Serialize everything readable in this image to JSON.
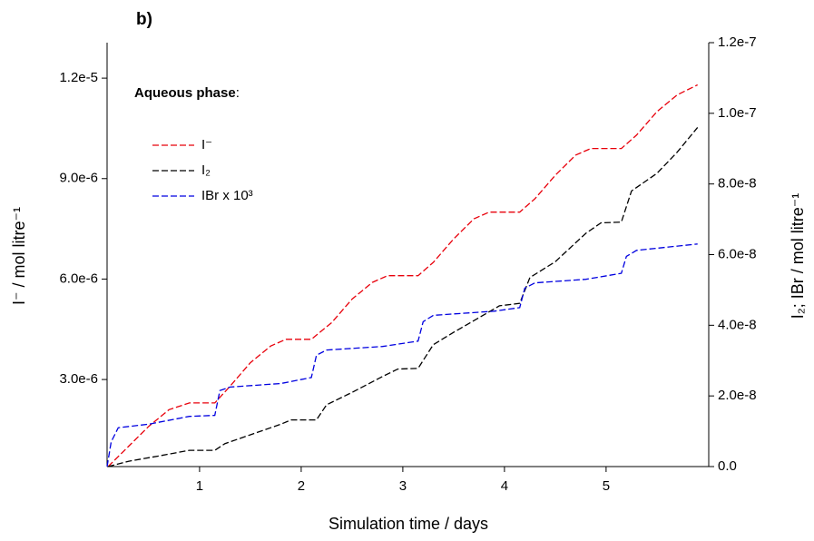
{
  "chart_data": {
    "type": "line",
    "title": "b)",
    "annotation": {
      "bold": "Aqueous phase",
      "rest": ":"
    },
    "xlabel": "Simulation time / days",
    "ylabel": "I⁻ / mol litre⁻¹",
    "y2label": "I₂; IBr / mol litre⁻¹",
    "xlim": [
      0.09,
      6.01
    ],
    "xticks": [
      1,
      2,
      3,
      4,
      5
    ],
    "ylim": [
      4e-07,
      1.306e-05
    ],
    "yticks": [
      {
        "value": 3e-06,
        "label": "3.0e-6"
      },
      {
        "value": 6e-06,
        "label": "6.0e-6"
      },
      {
        "value": 9e-06,
        "label": "9.0e-6"
      },
      {
        "value": 1.2e-05,
        "label": "1.2e-5"
      }
    ],
    "y2lim": [
      0,
      1.2e-07
    ],
    "y2ticks": [
      {
        "value": 0,
        "label": "0.0"
      },
      {
        "value": 2e-08,
        "label": "2.0e-8"
      },
      {
        "value": 4e-08,
        "label": "4.0e-8"
      },
      {
        "value": 6e-08,
        "label": "6.0e-8"
      },
      {
        "value": 8e-08,
        "label": "8.0e-8"
      },
      {
        "value": 1e-07,
        "label": "1.0e-7"
      },
      {
        "value": 1.2e-07,
        "label": "1.2e-7"
      }
    ],
    "series": [
      {
        "name": "I⁻",
        "color": "#e8000b",
        "x": [
          0.1,
          0.3,
          0.5,
          0.7,
          0.9,
          1.15,
          1.3,
          1.5,
          1.7,
          1.85,
          2.1,
          2.3,
          2.5,
          2.7,
          2.85,
          3.15,
          3.3,
          3.5,
          3.7,
          3.85,
          4.15,
          4.3,
          4.5,
          4.7,
          4.85,
          5.15,
          5.3,
          5.5,
          5.7,
          5.9
        ],
        "values": [
          4e-07,
          1e-06,
          1.6e-06,
          2.1e-06,
          2.3e-06,
          2.3e-06,
          2.8e-06,
          3.5e-06,
          4e-06,
          4.2e-06,
          4.2e-06,
          4.7e-06,
          5.4e-06,
          5.9e-06,
          6.1e-06,
          6.1e-06,
          6.5e-06,
          7.2e-06,
          7.8e-06,
          8e-06,
          8e-06,
          8.4e-06,
          9.1e-06,
          9.7e-06,
          9.9e-06,
          9.9e-06,
          1.03e-05,
          1.1e-05,
          1.15e-05,
          1.18e-05
        ]
      },
      {
        "name": "I₂",
        "color": "#000000",
        "axis": "y2",
        "x": [
          0.1,
          0.3,
          0.6,
          0.9,
          1.15,
          1.25,
          1.5,
          1.8,
          1.9,
          2.15,
          2.25,
          2.5,
          2.8,
          2.95,
          3.15,
          3.3,
          3.5,
          3.8,
          3.95,
          4.15,
          4.25,
          4.5,
          4.8,
          4.95,
          5.15,
          5.25,
          5.5,
          5.7,
          5.9
        ],
        "values": [
          0,
          1.5e-09,
          3e-09,
          4.6e-09,
          4.6e-09,
          6.5e-09,
          9e-09,
          1.2e-08,
          1.32e-08,
          1.32e-08,
          1.75e-08,
          2.1e-08,
          2.55e-08,
          2.76e-08,
          2.78e-08,
          3.45e-08,
          3.8e-08,
          4.3e-08,
          4.55e-08,
          4.62e-08,
          5.35e-08,
          5.8e-08,
          6.6e-08,
          6.9e-08,
          6.92e-08,
          7.8e-08,
          8.3e-08,
          8.9e-08,
          9.6e-08
        ]
      },
      {
        "name": "IBr x 10³",
        "color": "#0000e0",
        "axis": "y2",
        "x": [
          0.09,
          0.13,
          0.2,
          0.5,
          0.9,
          1.15,
          1.2,
          1.3,
          1.8,
          2.1,
          2.15,
          2.25,
          2.8,
          3.15,
          3.2,
          3.3,
          3.9,
          4.15,
          4.2,
          4.3,
          4.8,
          5.15,
          5.2,
          5.3,
          5.9
        ],
        "values": [
          0,
          7e-09,
          1.1e-08,
          1.2e-08,
          1.42e-08,
          1.45e-08,
          2.15e-08,
          2.25e-08,
          2.35e-08,
          2.52e-08,
          3.15e-08,
          3.3e-08,
          3.4e-08,
          3.55e-08,
          4.1e-08,
          4.28e-08,
          4.4e-08,
          4.5e-08,
          5.05e-08,
          5.2e-08,
          5.3e-08,
          5.47e-08,
          5.95e-08,
          6.12e-08,
          6.3e-08
        ]
      }
    ]
  }
}
